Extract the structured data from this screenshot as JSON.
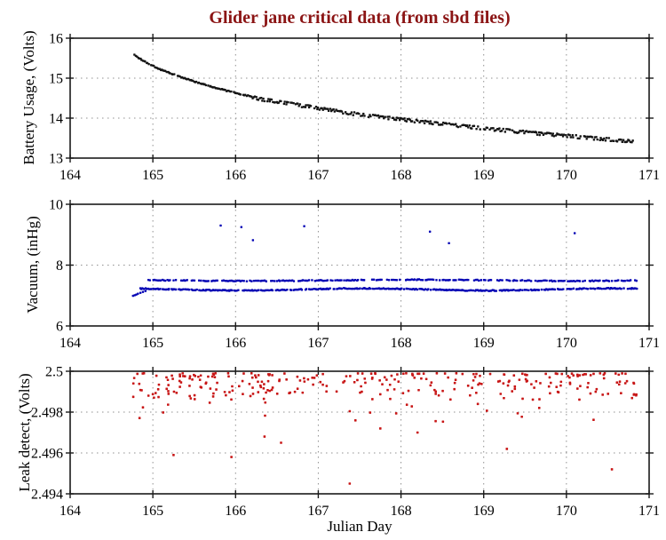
{
  "chart_data": {
    "type": "scatter",
    "title": "Glider jane critical data (from sbd files)",
    "title_color": "#8B1414",
    "axis_color": "#1a1a1a",
    "grid_color": "#909090",
    "background": "#FFFFFF",
    "seed": 1337,
    "x_axis": {
      "label": "Julian Day",
      "range": [
        164,
        171
      ],
      "ticks": [
        164,
        165,
        166,
        167,
        168,
        169,
        170,
        171
      ],
      "tick_labels": [
        "164",
        "165",
        "166",
        "167",
        "168",
        "169",
        "170",
        "171"
      ],
      "grid": [
        165,
        166,
        167,
        168,
        169,
        170
      ]
    },
    "subplots": [
      {
        "id": "battery",
        "ylabel": "Battery Usage, (Volts)",
        "color": "#141414",
        "marker_size": 2.4,
        "yrange": [
          13,
          16
        ],
        "yticks": [
          13,
          14,
          15,
          16
        ],
        "ytick_labels": [
          "13",
          "14",
          "15",
          "16"
        ],
        "grid": [
          14,
          15
        ],
        "series": [
          {
            "kind": "curve",
            "count": 420,
            "xstart": 164.78,
            "xend": 170.82,
            "noise": 0.013,
            "skip": 0.1,
            "anchors": [
              [
                164.78,
                15.58
              ],
              [
                164.82,
                15.52
              ],
              [
                164.88,
                15.44
              ],
              [
                164.95,
                15.36
              ],
              [
                165.0,
                15.31
              ],
              [
                165.1,
                15.21
              ],
              [
                165.2,
                15.13
              ],
              [
                165.35,
                15.02
              ],
              [
                165.5,
                14.92
              ],
              [
                165.7,
                14.79
              ],
              [
                165.9,
                14.68
              ],
              [
                166.1,
                14.58
              ],
              [
                166.3,
                14.5
              ],
              [
                166.5,
                14.44
              ],
              [
                166.7,
                14.37
              ],
              [
                167.0,
                14.27
              ],
              [
                167.3,
                14.17
              ],
              [
                167.6,
                14.09
              ],
              [
                168.0,
                13.99
              ],
              [
                168.4,
                13.9
              ],
              [
                168.8,
                13.81
              ],
              [
                169.2,
                13.73
              ],
              [
                169.6,
                13.65
              ],
              [
                170.0,
                13.58
              ],
              [
                170.4,
                13.51
              ],
              [
                170.82,
                13.44
              ]
            ],
            "split": {
              "after": 166.2,
              "prob": 0.35,
              "offset": -0.05
            }
          }
        ]
      },
      {
        "id": "vacuum",
        "ylabel": "Vacuum, (inHg)",
        "color": "#0000B4",
        "marker_size": 2.4,
        "yrange": [
          6,
          10
        ],
        "yticks": [
          6,
          8,
          10
        ],
        "ytick_labels": [
          "6",
          "8",
          "10"
        ],
        "grid": [
          8
        ],
        "series": [
          {
            "kind": "band",
            "count": 430,
            "xstart": 164.82,
            "xend": 170.85,
            "base": 7.2,
            "amp": 0.035,
            "freq": 2.1,
            "phase": 0.4,
            "noise": 0.016,
            "skip": 0.14
          },
          {
            "kind": "band",
            "count": 320,
            "xstart": 164.95,
            "xend": 170.85,
            "base": 7.5,
            "amp": 0.02,
            "freq": 1.6,
            "phase": 1.2,
            "noise": 0.015,
            "skip": 0.2
          },
          {
            "kind": "points",
            "points": [
              [
                164.76,
                6.99
              ],
              [
                164.78,
                7.01
              ],
              [
                164.8,
                7.03
              ],
              [
                164.82,
                7.06
              ],
              [
                164.85,
                7.09
              ],
              [
                164.88,
                7.12
              ],
              [
                164.91,
                7.15
              ]
            ]
          },
          {
            "kind": "points",
            "points": [
              [
                165.82,
                9.3
              ],
              [
                166.07,
                9.25
              ],
              [
                166.21,
                8.82
              ],
              [
                166.83,
                9.28
              ],
              [
                168.35,
                9.1
              ],
              [
                168.58,
                8.72
              ],
              [
                170.1,
                9.05
              ]
            ]
          }
        ]
      },
      {
        "id": "leak",
        "ylabel": "Leak detect, (Volts)",
        "color": "#C81616",
        "marker_size": 2.6,
        "yrange": [
          2.494,
          2.5
        ],
        "yticks": [
          2.494,
          2.496,
          2.498,
          2.5
        ],
        "ytick_labels": [
          "2.494",
          "2.496",
          "2.498",
          "2.5"
        ],
        "grid": [
          2.496,
          2.498
        ],
        "series": [
          {
            "kind": "cloud",
            "count": 310,
            "xstart": 164.75,
            "xend": 170.85,
            "ymax": 2.4999,
            "pow": 1.8,
            "spread": 0.0013,
            "dip_prob": 0.18,
            "dip_max": 0.0013
          },
          {
            "kind": "points",
            "points": [
              [
                165.25,
                2.4959
              ],
              [
                165.95,
                2.4958
              ],
              [
                166.35,
                2.4968
              ],
              [
                166.55,
                2.4965
              ],
              [
                167.38,
                2.4945
              ],
              [
                167.75,
                2.4972
              ],
              [
                168.2,
                2.497
              ],
              [
                169.28,
                2.4962
              ],
              [
                170.55,
                2.4952
              ]
            ]
          }
        ]
      }
    ]
  }
}
